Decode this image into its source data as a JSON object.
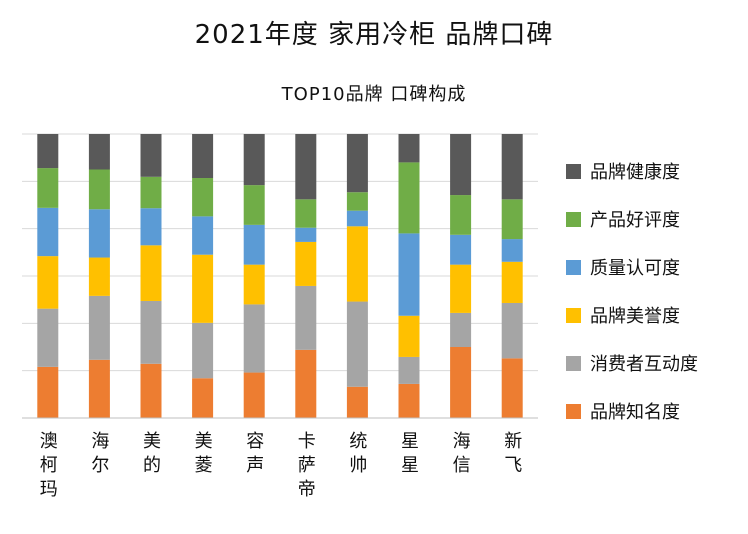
{
  "title": "2021年度 家用冷柜 品牌口碑",
  "subtitle": "TOP10品牌 口碑构成",
  "chart_data": {
    "type": "bar",
    "stacked": true,
    "normalized": true,
    "ylim": [
      0,
      100
    ],
    "grid": true,
    "legend_position": "right",
    "categories": [
      "澳柯玛",
      "海尔",
      "美的",
      "美菱",
      "容声",
      "卡萨帝",
      "统帅",
      "星星",
      "海信",
      "新飞"
    ],
    "series": [
      {
        "name": "品牌知名度",
        "color": "#ED7D31",
        "values": [
          18,
          20.5,
          19,
          14,
          16,
          24,
          11,
          12,
          25,
          21
        ]
      },
      {
        "name": "消费者互动度",
        "color": "#A5A5A5",
        "values": [
          20.5,
          22.5,
          22,
          19.5,
          24,
          22.5,
          30,
          9.5,
          12,
          19.5
        ]
      },
      {
        "name": "品牌美誉度",
        "color": "#FFC000",
        "values": [
          18.5,
          13.5,
          19.5,
          24,
          14,
          15.5,
          26.5,
          14.5,
          17,
          14.5
        ]
      },
      {
        "name": "质量认可度",
        "color": "#5B9BD5",
        "values": [
          17,
          17,
          13,
          13.5,
          14,
          5,
          5.5,
          29,
          10.5,
          8
        ]
      },
      {
        "name": "产品好评度",
        "color": "#70AD47",
        "values": [
          14,
          14,
          11,
          13.5,
          14,
          10,
          6.5,
          25,
          14,
          14
        ]
      },
      {
        "name": "品牌健康度",
        "color": "#595959",
        "values": [
          12,
          12.5,
          15,
          15.5,
          18,
          23,
          20.5,
          10,
          21.5,
          23
        ]
      }
    ]
  }
}
